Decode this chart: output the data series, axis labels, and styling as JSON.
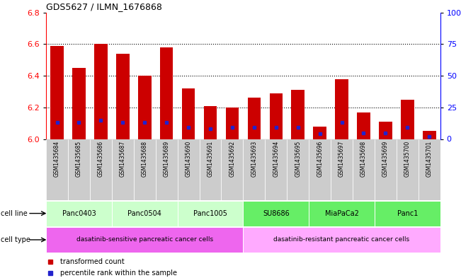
{
  "title": "GDS5627 / ILMN_1676868",
  "samples": [
    "GSM1435684",
    "GSM1435685",
    "GSM1435686",
    "GSM1435687",
    "GSM1435688",
    "GSM1435689",
    "GSM1435690",
    "GSM1435691",
    "GSM1435692",
    "GSM1435693",
    "GSM1435694",
    "GSM1435695",
    "GSM1435696",
    "GSM1435697",
    "GSM1435698",
    "GSM1435699",
    "GSM1435700",
    "GSM1435701"
  ],
  "transformed_counts": [
    6.59,
    6.45,
    6.6,
    6.54,
    6.4,
    6.58,
    6.32,
    6.21,
    6.2,
    6.26,
    6.29,
    6.31,
    6.08,
    6.38,
    6.17,
    6.11,
    6.25,
    6.05
  ],
  "percentile_ranks_pct": [
    13,
    13,
    15,
    13,
    13,
    13,
    9,
    8,
    9,
    9,
    9,
    9,
    4,
    13,
    5,
    5,
    9,
    2
  ],
  "ymin": 6.0,
  "ymax": 6.8,
  "yticks": [
    6.0,
    6.2,
    6.4,
    6.6,
    6.8
  ],
  "right_yticks": [
    0,
    25,
    50,
    75,
    100
  ],
  "right_ytick_labels": [
    "0",
    "25",
    "50",
    "75",
    "100%"
  ],
  "bar_color": "#cc0000",
  "blue_color": "#2222cc",
  "bar_width": 0.6,
  "cell_lines": [
    {
      "label": "Panc0403",
      "start": 0,
      "end": 2,
      "color": "#ccffcc"
    },
    {
      "label": "Panc0504",
      "start": 3,
      "end": 5,
      "color": "#ccffcc"
    },
    {
      "label": "Panc1005",
      "start": 6,
      "end": 8,
      "color": "#ccffcc"
    },
    {
      "label": "SU8686",
      "start": 9,
      "end": 11,
      "color": "#66ee66"
    },
    {
      "label": "MiaPaCa2",
      "start": 12,
      "end": 14,
      "color": "#66ee66"
    },
    {
      "label": "Panc1",
      "start": 15,
      "end": 17,
      "color": "#66ee66"
    }
  ],
  "cell_types": [
    {
      "label": "dasatinib-sensitive pancreatic cancer cells",
      "start": 0,
      "end": 8,
      "color": "#ee66ee"
    },
    {
      "label": "dasatinib-resistant pancreatic cancer cells",
      "start": 9,
      "end": 17,
      "color": "#ffaaff"
    }
  ],
  "tick_bg_color": "#cccccc",
  "legend_red_label": "transformed count",
  "legend_blue_label": "percentile rank within the sample",
  "cell_line_label": "cell line",
  "cell_type_label": "cell type"
}
